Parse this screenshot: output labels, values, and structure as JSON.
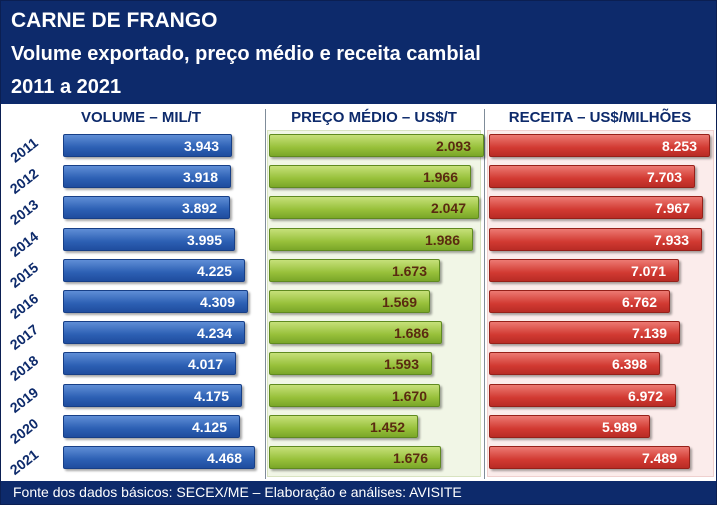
{
  "header": {
    "title": "CARNE DE FRANGO",
    "subtitle": "Volume exportado, preço médio e receita cambial",
    "period": "2011 a 2021"
  },
  "footer": {
    "source": "Fonte dos dados básicos: SECEX/ME – Elaboração e análises: AVISITE"
  },
  "colors": {
    "header_bg": "#0d2a6b",
    "volume_bar": "#2c5fb3",
    "preco_bar": "#97c03a",
    "receita_bar": "#d23a32"
  },
  "chart_data": {
    "type": "bar",
    "orientation": "horizontal",
    "categories": [
      "2011",
      "2012",
      "2013",
      "2014",
      "2015",
      "2016",
      "2017",
      "2018",
      "2019",
      "2020",
      "2021"
    ],
    "series": [
      {
        "name": "VOLUME – MIL/T",
        "values": [
          3943,
          3918,
          3892,
          3995,
          4225,
          4309,
          4234,
          4017,
          4175,
          4125,
          4468
        ],
        "labels": [
          "3.943",
          "3.918",
          "3.892",
          "3.995",
          "4.225",
          "4.309",
          "4.234",
          "4.017",
          "4.175",
          "4.125",
          "4.468"
        ]
      },
      {
        "name": "PREÇO MÉDIO – US$/T",
        "values": [
          2093,
          1966,
          2047,
          1986,
          1673,
          1569,
          1686,
          1593,
          1670,
          1452,
          1676
        ],
        "labels": [
          "2.093",
          "1.966",
          "2.047",
          "1.986",
          "1.673",
          "1.569",
          "1.686",
          "1.593",
          "1.670",
          "1.452",
          "1.676"
        ]
      },
      {
        "name": "RECEITA – US$/MILHÕES",
        "values": [
          8253,
          7703,
          7967,
          7933,
          7071,
          6762,
          7139,
          6398,
          6972,
          5989,
          7489
        ],
        "labels": [
          "8.253",
          "7.703",
          "7.967",
          "7.933",
          "7.071",
          "6.762",
          "7.139",
          "6.398",
          "6.972",
          "5.989",
          "7.489"
        ]
      }
    ],
    "legend": "none",
    "grid": false
  }
}
